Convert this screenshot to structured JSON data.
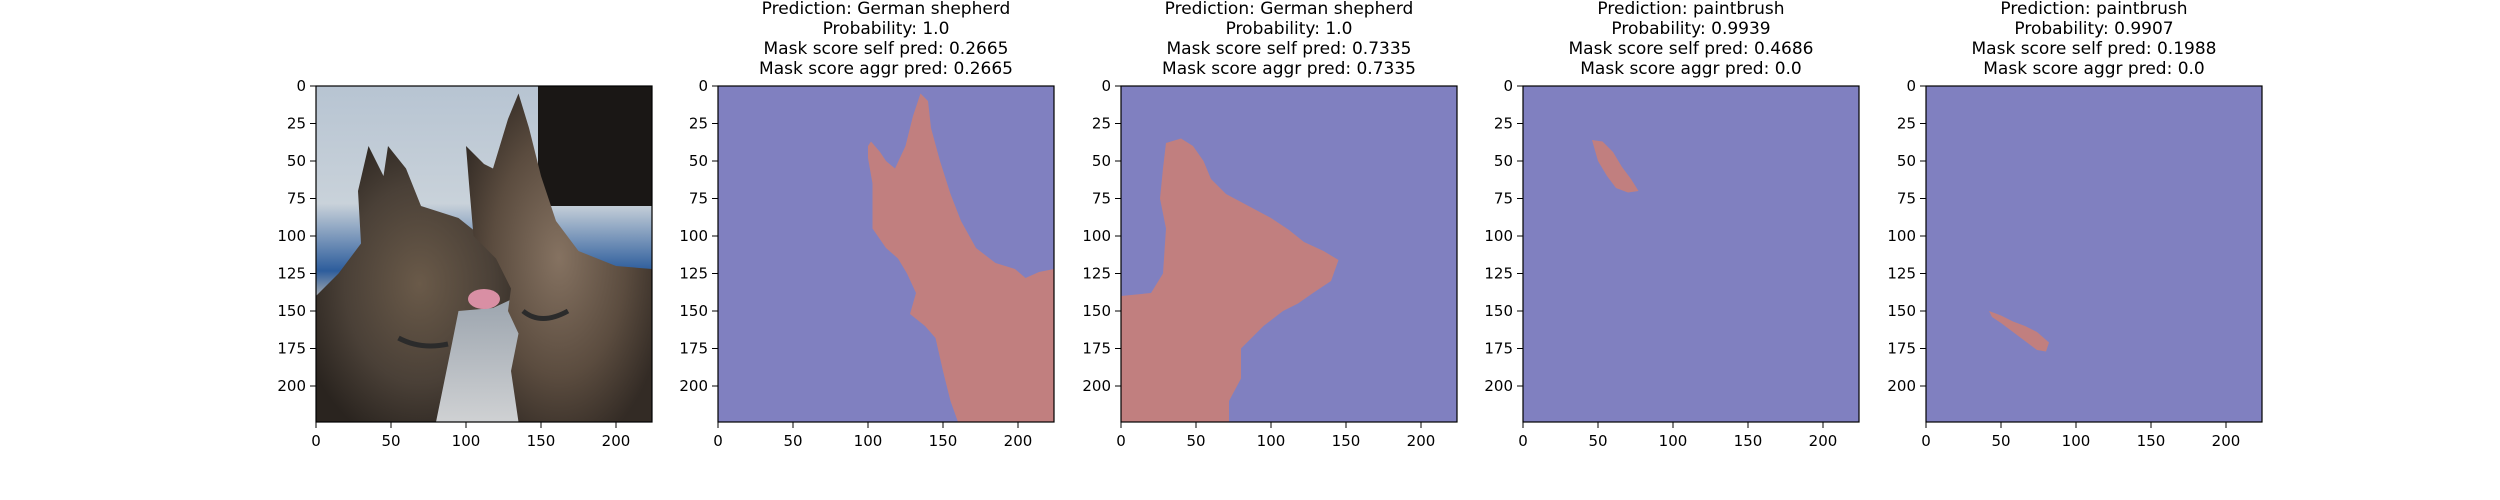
{
  "chart_data": [
    {
      "type": "image",
      "content": "photo",
      "title_lines": [],
      "xlim": [
        0,
        224
      ],
      "ylim": [
        224,
        0
      ],
      "xticks": [
        0,
        50,
        100,
        150,
        200
      ],
      "yticks": [
        0,
        25,
        50,
        75,
        100,
        125,
        150,
        175,
        200
      ]
    },
    {
      "type": "mask",
      "title_lines": [
        "Prediction: German shepherd",
        "Probability: 1.0",
        "Mask score self pred: 0.2665",
        "Mask score aggr pred: 0.2665"
      ],
      "xlim": [
        0,
        224
      ],
      "ylim": [
        224,
        0
      ],
      "xticks": [
        0,
        50,
        100,
        150,
        200
      ],
      "yticks": [
        0,
        25,
        50,
        75,
        100,
        125,
        150,
        175,
        200
      ],
      "mask_polygon": [
        [
          135,
          5
        ],
        [
          140,
          10
        ],
        [
          142,
          28
        ],
        [
          148,
          50
        ],
        [
          155,
          72
        ],
        [
          162,
          90
        ],
        [
          172,
          108
        ],
        [
          185,
          118
        ],
        [
          198,
          122
        ],
        [
          205,
          128
        ],
        [
          214,
          124
        ],
        [
          224,
          122
        ],
        [
          224,
          224
        ],
        [
          160,
          224
        ],
        [
          155,
          210
        ],
        [
          150,
          190
        ],
        [
          145,
          168
        ],
        [
          138,
          160
        ],
        [
          128,
          152
        ],
        [
          132,
          138
        ],
        [
          126,
          125
        ],
        [
          120,
          115
        ],
        [
          112,
          108
        ],
        [
          103,
          95
        ],
        [
          103,
          65
        ],
        [
          100,
          48
        ],
        [
          100,
          40
        ],
        [
          102,
          37
        ],
        [
          108,
          44
        ],
        [
          112,
          50
        ],
        [
          118,
          55
        ],
        [
          125,
          40
        ],
        [
          130,
          20
        ]
      ]
    },
    {
      "type": "mask",
      "title_lines": [
        "Prediction: German shepherd",
        "Probability: 1.0",
        "Mask score self pred: 0.7335",
        "Mask score aggr pred: 0.7335"
      ],
      "xlim": [
        0,
        224
      ],
      "ylim": [
        224,
        0
      ],
      "xticks": [
        0,
        50,
        100,
        150,
        200
      ],
      "yticks": [
        0,
        25,
        50,
        75,
        100,
        125,
        150,
        175,
        200
      ],
      "mask_polygon": [
        [
          30,
          38
        ],
        [
          40,
          35
        ],
        [
          48,
          40
        ],
        [
          55,
          50
        ],
        [
          60,
          62
        ],
        [
          70,
          72
        ],
        [
          85,
          80
        ],
        [
          100,
          88
        ],
        [
          112,
          96
        ],
        [
          122,
          104
        ],
        [
          135,
          110
        ],
        [
          145,
          116
        ],
        [
          140,
          130
        ],
        [
          128,
          138
        ],
        [
          118,
          145
        ],
        [
          108,
          150
        ],
        [
          95,
          160
        ],
        [
          80,
          175
        ],
        [
          80,
          195
        ],
        [
          72,
          210
        ],
        [
          72,
          224
        ],
        [
          0,
          224
        ],
        [
          0,
          140
        ],
        [
          20,
          138
        ],
        [
          28,
          125
        ],
        [
          30,
          95
        ],
        [
          26,
          75
        ],
        [
          28,
          55
        ]
      ]
    },
    {
      "type": "mask",
      "title_lines": [
        "Prediction: paintbrush",
        "Probability: 0.9939",
        "Mask score self pred: 0.4686",
        "Mask score aggr pred: 0.0"
      ],
      "xlim": [
        0,
        224
      ],
      "ylim": [
        224,
        0
      ],
      "xticks": [
        0,
        50,
        100,
        150,
        200
      ],
      "yticks": [
        0,
        25,
        50,
        75,
        100,
        125,
        150,
        175,
        200
      ],
      "mask_polygon": [
        [
          46,
          36
        ],
        [
          53,
          37
        ],
        [
          60,
          44
        ],
        [
          66,
          54
        ],
        [
          72,
          62
        ],
        [
          77,
          70
        ],
        [
          70,
          71
        ],
        [
          62,
          68
        ],
        [
          56,
          60
        ],
        [
          50,
          50
        ]
      ]
    },
    {
      "type": "mask",
      "title_lines": [
        "Prediction: paintbrush",
        "Probability: 0.9907",
        "Mask score self pred: 0.1988",
        "Mask score aggr pred: 0.0"
      ],
      "xlim": [
        0,
        224
      ],
      "ylim": [
        224,
        0
      ],
      "xticks": [
        0,
        50,
        100,
        150,
        200
      ],
      "yticks": [
        0,
        25,
        50,
        75,
        100,
        125,
        150,
        175,
        200
      ],
      "mask_polygon": [
        [
          42,
          150
        ],
        [
          50,
          153
        ],
        [
          58,
          157
        ],
        [
          66,
          160
        ],
        [
          74,
          164
        ],
        [
          82,
          171
        ],
        [
          80,
          177
        ],
        [
          74,
          176
        ],
        [
          66,
          170
        ],
        [
          58,
          164
        ],
        [
          50,
          158
        ],
        [
          44,
          154
        ]
      ]
    }
  ],
  "colors": {
    "mask_background": "#8080c0",
    "mask_foreground": "#c17f7f",
    "axis": "#000000",
    "text": "#000000"
  }
}
